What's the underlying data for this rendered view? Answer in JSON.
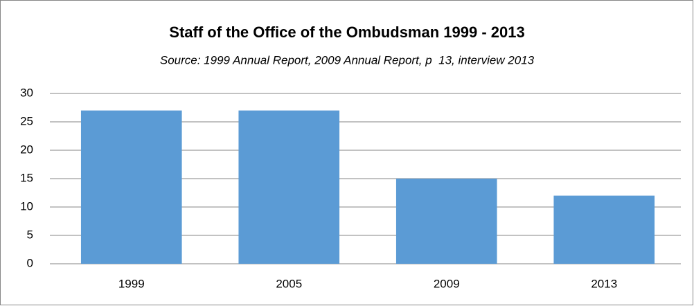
{
  "chart_data": {
    "type": "bar",
    "title": "Staff of the Office of the Ombudsman 1999 - 2013",
    "subtitle": "Source: 1999 Annual Report, 2009 Annual Report, p  13, interview 2013",
    "categories": [
      "1999",
      "2005",
      "2009",
      "2013"
    ],
    "values": [
      27,
      27,
      15,
      12
    ],
    "color": "#5b9bd5",
    "ylim": [
      0,
      30
    ],
    "yticks": [
      0,
      5,
      10,
      15,
      20,
      25,
      30
    ],
    "grid": true
  }
}
